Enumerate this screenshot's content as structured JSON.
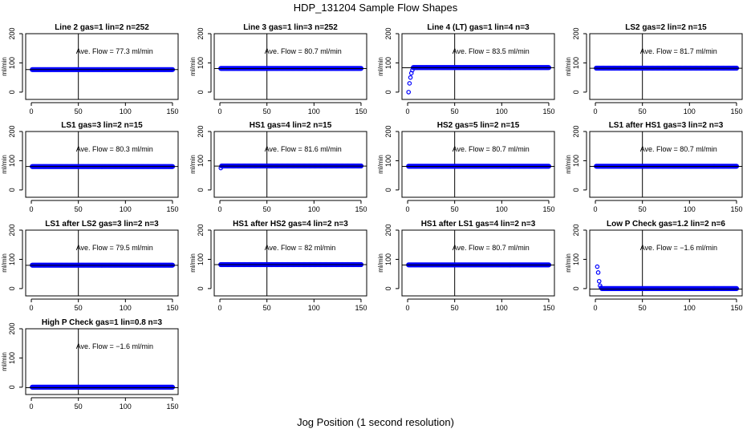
{
  "figure": {
    "title": "HDP_131204  Sample Flow Shapes",
    "xlabel": "Jog Position (1 second resolution)"
  },
  "colors": {
    "points": "#0000ff",
    "lines": "#000000"
  },
  "chart_data": [
    {
      "type": "scatter",
      "title": "Line 2 gas=1 lin=2 n=252",
      "ylabel": "ml/min",
      "annotation": "Ave. Flow =  77.3  ml/min",
      "xlim": [
        0,
        150
      ],
      "ylim": [
        -25,
        200
      ],
      "xticks": [
        0,
        50,
        100,
        150
      ],
      "yticks": [
        0,
        100,
        200
      ],
      "vline": 50,
      "hline": 77.3,
      "flat_value": 77,
      "startup": []
    },
    {
      "type": "scatter",
      "title": "Line 3 gas=1 lin=3 n=252",
      "ylabel": "ml/min",
      "annotation": "Ave. Flow =  80.7  ml/min",
      "xlim": [
        0,
        150
      ],
      "ylim": [
        -25,
        200
      ],
      "xticks": [
        0,
        50,
        100,
        150
      ],
      "yticks": [
        0,
        100,
        200
      ],
      "vline": 50,
      "hline": 80.7,
      "flat_value": 81,
      "startup": []
    },
    {
      "type": "scatter",
      "title": "Line 4 (LT) gas=1 lin=4 n=3",
      "ylabel": "ml/min",
      "annotation": "Ave. Flow =  83.5  ml/min",
      "xlim": [
        0,
        150
      ],
      "ylim": [
        -25,
        200
      ],
      "xticks": [
        0,
        50,
        100,
        150
      ],
      "yticks": [
        0,
        100,
        200
      ],
      "vline": 50,
      "hline": 83.5,
      "flat_value": 84,
      "startup": [
        [
          1,
          0
        ],
        [
          2,
          30
        ],
        [
          3,
          50
        ],
        [
          4,
          65
        ],
        [
          5,
          75
        ]
      ]
    },
    {
      "type": "scatter",
      "title": "LS2 gas=2 lin=2 n=15",
      "ylabel": "ml/min",
      "annotation": "Ave. Flow =  81.7  ml/min",
      "xlim": [
        0,
        150
      ],
      "ylim": [
        -25,
        200
      ],
      "xticks": [
        0,
        50,
        100,
        150
      ],
      "yticks": [
        0,
        100,
        200
      ],
      "vline": 50,
      "hline": 81.7,
      "flat_value": 82,
      "startup": []
    },
    {
      "type": "scatter",
      "title": "LS1 gas=3 lin=2 n=15",
      "ylabel": "ml/min",
      "annotation": "Ave. Flow =  80.3  ml/min",
      "xlim": [
        0,
        150
      ],
      "ylim": [
        -25,
        200
      ],
      "xticks": [
        0,
        50,
        100,
        150
      ],
      "yticks": [
        0,
        100,
        200
      ],
      "vline": 50,
      "hline": 80.3,
      "flat_value": 80,
      "startup": []
    },
    {
      "type": "scatter",
      "title": "HS1 gas=4 lin=2 n=15",
      "ylabel": "ml/min",
      "annotation": "Ave. Flow =  81.6  ml/min",
      "xlim": [
        0,
        150
      ],
      "ylim": [
        -25,
        200
      ],
      "xticks": [
        0,
        50,
        100,
        150
      ],
      "yticks": [
        0,
        100,
        200
      ],
      "vline": 50,
      "hline": 81.6,
      "flat_value": 82,
      "startup": [
        [
          1,
          75
        ]
      ]
    },
    {
      "type": "scatter",
      "title": "HS2 gas=5 lin=2 n=15",
      "ylabel": "ml/min",
      "annotation": "Ave. Flow =  80.7  ml/min",
      "xlim": [
        0,
        150
      ],
      "ylim": [
        -25,
        200
      ],
      "xticks": [
        0,
        50,
        100,
        150
      ],
      "yticks": [
        0,
        100,
        200
      ],
      "vline": 50,
      "hline": 80.7,
      "flat_value": 81,
      "startup": []
    },
    {
      "type": "scatter",
      "title": "LS1 after HS1 gas=3 lin=2 n=3",
      "ylabel": "ml/min",
      "annotation": "Ave. Flow =  80.7  ml/min",
      "xlim": [
        0,
        150
      ],
      "ylim": [
        -25,
        200
      ],
      "xticks": [
        0,
        50,
        100,
        150
      ],
      "yticks": [
        0,
        100,
        200
      ],
      "vline": 50,
      "hline": 80.7,
      "flat_value": 81,
      "startup": []
    },
    {
      "type": "scatter",
      "title": "LS1 after LS2 gas=3 lin=2 n=3",
      "ylabel": "ml/min",
      "annotation": "Ave. Flow =  79.5  ml/min",
      "xlim": [
        0,
        150
      ],
      "ylim": [
        -25,
        200
      ],
      "xticks": [
        0,
        50,
        100,
        150
      ],
      "yticks": [
        0,
        100,
        200
      ],
      "vline": 50,
      "hline": 79.5,
      "flat_value": 80,
      "startup": []
    },
    {
      "type": "scatter",
      "title": "HS1 after HS2 gas=4 lin=2 n=3",
      "ylabel": "ml/min",
      "annotation": "Ave. Flow =  82  ml/min",
      "xlim": [
        0,
        150
      ],
      "ylim": [
        -25,
        200
      ],
      "xticks": [
        0,
        50,
        100,
        150
      ],
      "yticks": [
        0,
        100,
        200
      ],
      "vline": 50,
      "hline": 82,
      "flat_value": 82,
      "startup": []
    },
    {
      "type": "scatter",
      "title": "HS1 after LS1 gas=4 lin=2 n=3",
      "ylabel": "ml/min",
      "annotation": "Ave. Flow =  80.7  ml/min",
      "xlim": [
        0,
        150
      ],
      "ylim": [
        -25,
        200
      ],
      "xticks": [
        0,
        50,
        100,
        150
      ],
      "yticks": [
        0,
        100,
        200
      ],
      "vline": 50,
      "hline": 80.7,
      "flat_value": 81,
      "startup": []
    },
    {
      "type": "scatter",
      "title": "Low P Check gas=1.2 lin=2 n=6",
      "ylabel": "ml/min",
      "annotation": "Ave. Flow =  −1.6  ml/min",
      "xlim": [
        0,
        150
      ],
      "ylim": [
        -25,
        200
      ],
      "xticks": [
        0,
        50,
        100,
        150
      ],
      "yticks": [
        0,
        100,
        200
      ],
      "vline": 50,
      "hline": -1.6,
      "flat_value": 0,
      "startup": [
        [
          2,
          75
        ],
        [
          3,
          55
        ],
        [
          4,
          25
        ],
        [
          5,
          10
        ],
        [
          6,
          3
        ]
      ]
    },
    {
      "type": "scatter",
      "title": "High P Check gas=1 lin=0.8 n=3",
      "ylabel": "ml/min",
      "annotation": "Ave. Flow =  −1.6  ml/min",
      "xlim": [
        0,
        150
      ],
      "ylim": [
        -25,
        200
      ],
      "xticks": [
        0,
        50,
        100,
        150
      ],
      "yticks": [
        0,
        100,
        200
      ],
      "vline": 50,
      "hline": -1.6,
      "flat_value": 0,
      "startup": []
    }
  ]
}
